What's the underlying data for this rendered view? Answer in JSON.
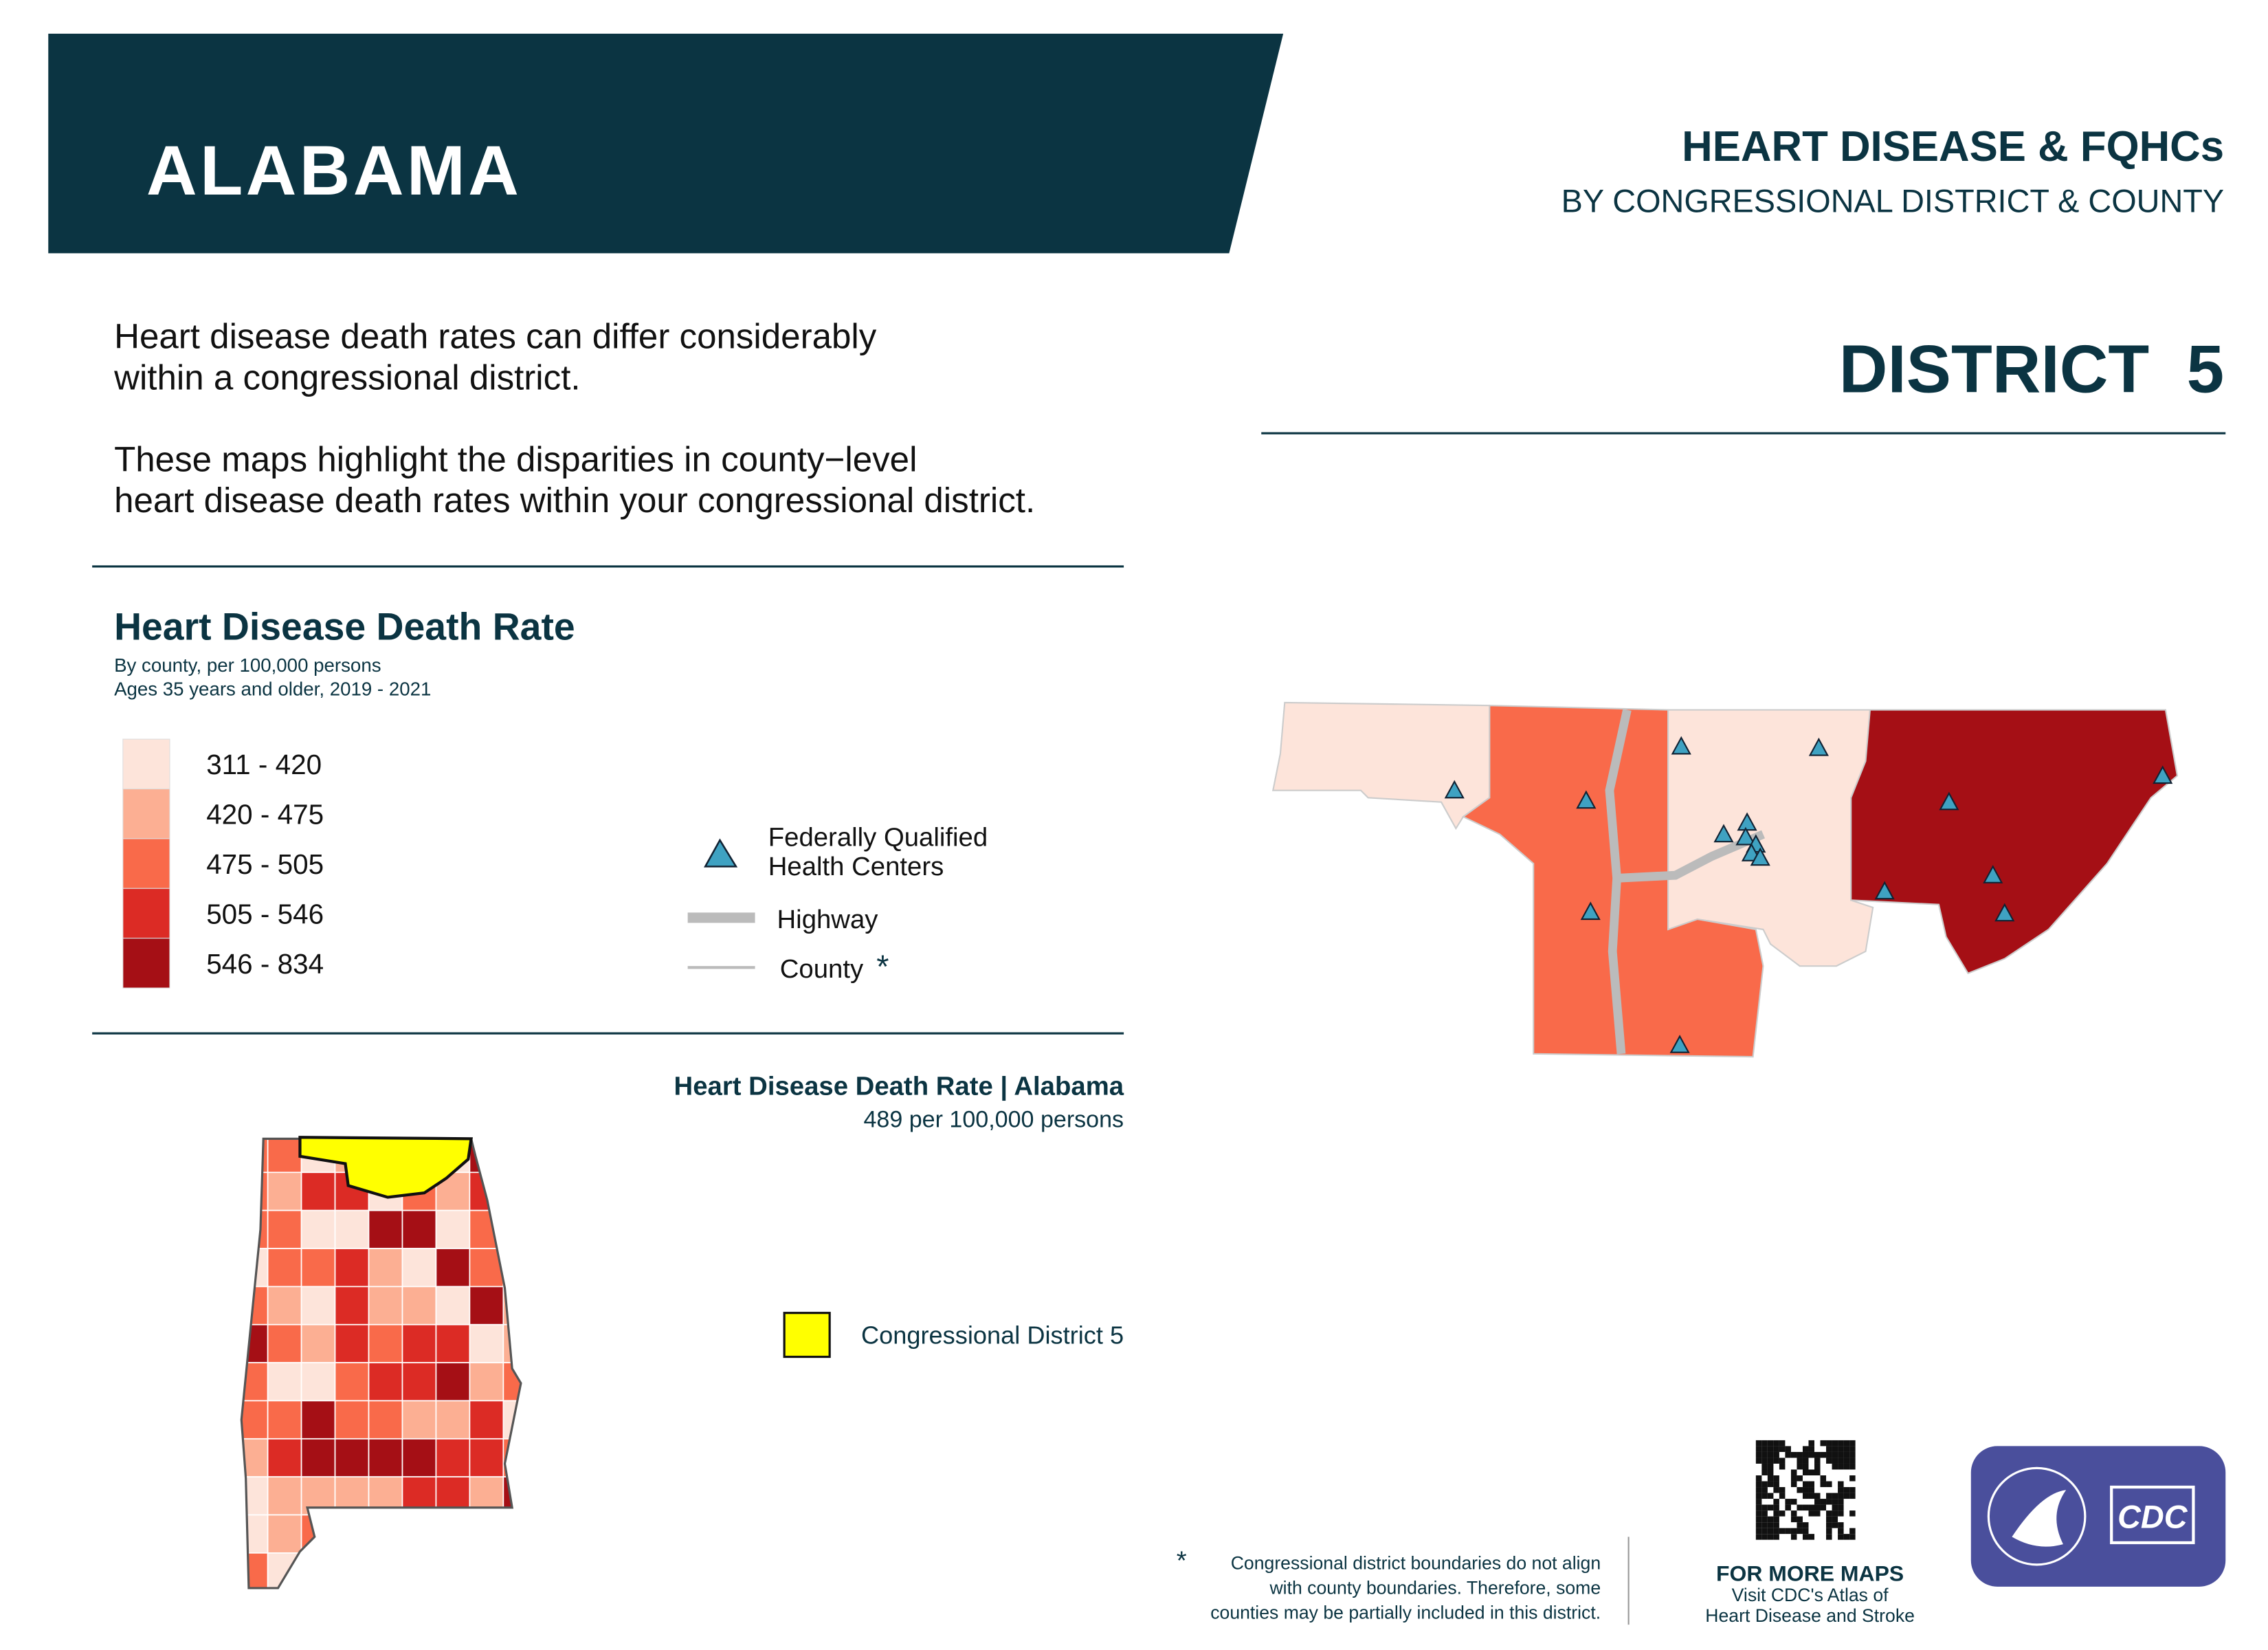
{
  "header": {
    "state": "ALABAMA",
    "title": "HEART DISEASE & FQHCs",
    "subtitle": "BY CONGRESSIONAL DISTRICT & COUNTY"
  },
  "district": "DISTRICT  5",
  "intro": {
    "paragraphs": [
      [
        "Heart disease death rates can differ considerably",
        "within a congressional district."
      ],
      [
        "These maps highlight the disparities in county−level",
        "heart disease death rates within your congressional district."
      ]
    ]
  },
  "legend": {
    "title": "Heart Disease Death Rate",
    "subtitle": [
      "By county, per 100,000 persons",
      "Ages 35 years and older, 2019 - 2021"
    ],
    "classes": [
      {
        "label": "311 - 420",
        "color": "#fde4da"
      },
      {
        "label": "420 - 475",
        "color": "#fcaf93"
      },
      {
        "label": "475 - 505",
        "color": "#f96a4a"
      },
      {
        "label": "505 - 546",
        "color": "#dc2b25"
      },
      {
        "label": "546 - 834",
        "color": "#a50f15"
      }
    ],
    "fqhc": [
      "Federally Qualified",
      "Health Centers"
    ],
    "highway": "Highway",
    "county": "County",
    "county_note": "*"
  },
  "state_summary": {
    "title": "Heart Disease Death Rate | Alabama",
    "rate": "489 per 100,000 persons",
    "district_label": "Congressional District 5"
  },
  "footnote": {
    "mark": "*",
    "lines": [
      "Congressional district boundaries do not align",
      "with county boundaries. Therefore, some",
      "counties may be partially included in this district."
    ]
  },
  "more_maps": {
    "title": "FOR MORE MAPS",
    "lines": [
      "Visit CDC's Atlas of",
      "Heart Disease and Stroke"
    ]
  },
  "logo": "CDC"
}
